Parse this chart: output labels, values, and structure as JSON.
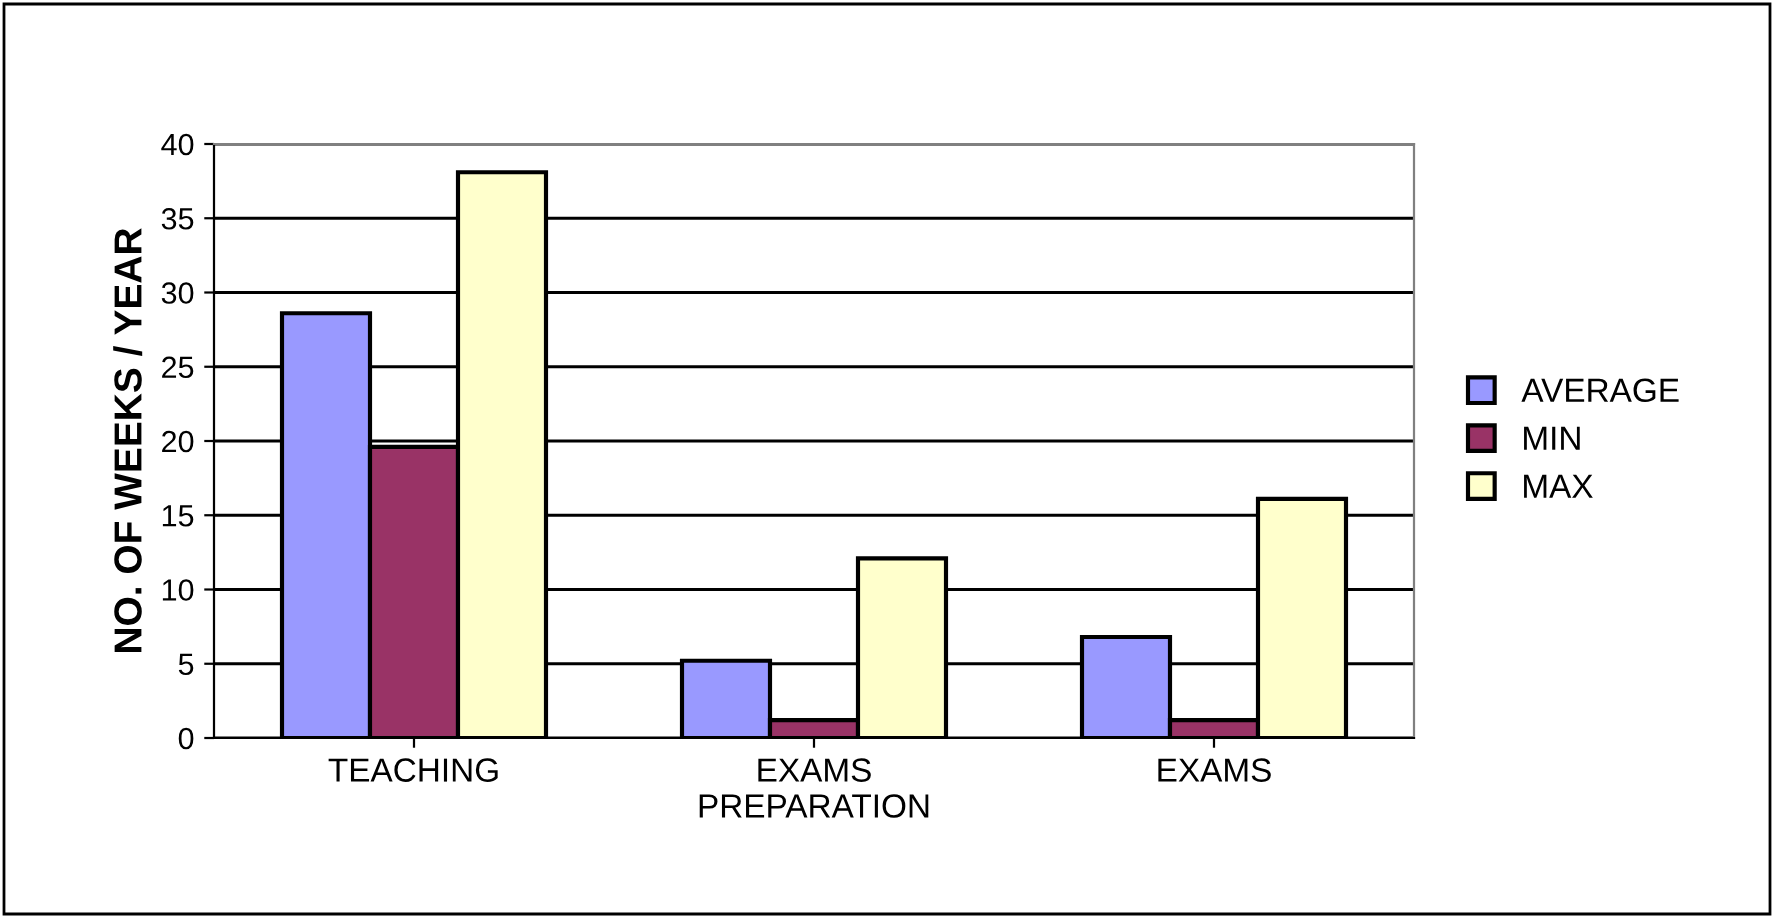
{
  "chart_data": {
    "type": "bar",
    "ylabel": "NO. OF WEEKS / YEAR",
    "categories": [
      "TEACHING",
      "EXAMS\nPREPARATION",
      "EXAMS"
    ],
    "series": [
      {
        "name": "AVERAGE",
        "color": "#9999ff",
        "values": [
          28.6,
          5.2,
          6.8
        ]
      },
      {
        "name": "MIN",
        "color": "#993366",
        "values": [
          19.6,
          1.2,
          1.2
        ]
      },
      {
        "name": "MAX",
        "color": "#ffffcc",
        "values": [
          38.1,
          12.1,
          16.1
        ]
      }
    ],
    "ylim": [
      0,
      40
    ],
    "yticks": [
      0,
      5,
      10,
      15,
      20,
      25,
      30,
      35,
      40
    ],
    "grid": "y",
    "legend": "right"
  }
}
